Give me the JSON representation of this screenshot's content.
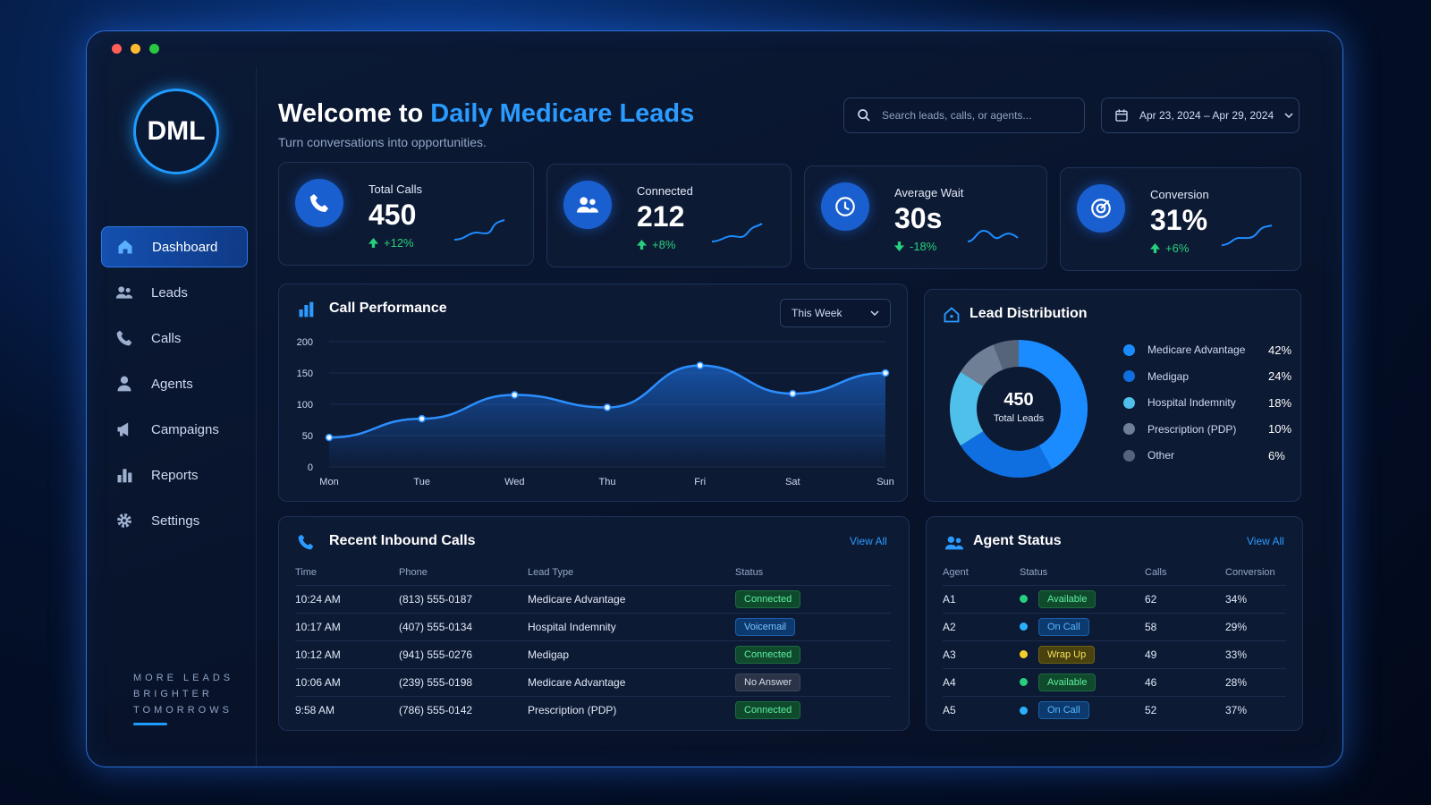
{
  "sidebar": {
    "logo": "DML",
    "items": [
      {
        "label": "Dashboard",
        "icon": "home-icon",
        "active": true
      },
      {
        "label": "Leads",
        "icon": "users-icon"
      },
      {
        "label": "Calls",
        "icon": "phone-icon"
      },
      {
        "label": "Agents",
        "icon": "user-icon"
      },
      {
        "label": "Campaigns",
        "icon": "megaphone-icon"
      },
      {
        "label": "Reports",
        "icon": "bar-chart-icon"
      },
      {
        "label": "Settings",
        "icon": "gear-icon"
      }
    ],
    "tagline": [
      "MORE LEADS",
      "BRIGHTER",
      "TOMORROWS"
    ]
  },
  "header": {
    "title_prefix": "Welcome to ",
    "title_accent": "Daily Medicare Leads",
    "subtitle": "Turn conversations into opportunities.",
    "search_placeholder": "Search leads, calls, or agents...",
    "date_range": "Apr 23, 2024 – Apr 29, 2024"
  },
  "kpis": [
    {
      "label": "Total Calls",
      "value": "450",
      "delta": "+12%",
      "direction": "up",
      "icon": "phone-icon"
    },
    {
      "label": "Connected",
      "value": "212",
      "delta": "+8%",
      "direction": "up",
      "icon": "users-icon"
    },
    {
      "label": "Average Wait",
      "value": "30s",
      "delta": "-18%",
      "direction": "down",
      "icon": "clock-icon"
    },
    {
      "label": "Conversion",
      "value": "31%",
      "delta": "+6%",
      "direction": "up",
      "icon": "target-icon"
    }
  ],
  "call_performance": {
    "title": "Call Performance",
    "range_select": "This Week"
  },
  "lead_distribution": {
    "title": "Lead Distribution",
    "center_value": "450",
    "center_label": "Total Leads"
  },
  "recent_calls": {
    "title": "Recent Inbound Calls",
    "view_all": "View All",
    "columns": [
      "Time",
      "Phone",
      "Lead Type",
      "Status"
    ],
    "rows": [
      {
        "time": "10:24 AM",
        "phone": "(813) 555-0187",
        "lead_type": "Medicare Advantage",
        "status": "Connected"
      },
      {
        "time": "10:17 AM",
        "phone": "(407) 555-0134",
        "lead_type": "Hospital Indemnity",
        "status": "Voicemail"
      },
      {
        "time": "10:12 AM",
        "phone": "(941) 555-0276",
        "lead_type": "Medigap",
        "status": "Connected"
      },
      {
        "time": "10:06 AM",
        "phone": "(239) 555-0198",
        "lead_type": "Medicare Advantage",
        "status": "No Answer"
      },
      {
        "time": "9:58 AM",
        "phone": "(786) 555-0142",
        "lead_type": "Prescription (PDP)",
        "status": "Connected"
      }
    ]
  },
  "agent_status": {
    "title": "Agent Status",
    "view_all": "View All",
    "columns": [
      "Agent",
      "Status",
      "Calls",
      "Conversion"
    ],
    "rows": [
      {
        "agent": "A1",
        "status": "Available",
        "calls": "62",
        "conversion": "34%"
      },
      {
        "agent": "A2",
        "status": "On Call",
        "calls": "58",
        "conversion": "29%"
      },
      {
        "agent": "A3",
        "status": "Wrap Up",
        "calls": "49",
        "conversion": "33%"
      },
      {
        "agent": "A4",
        "status": "Available",
        "calls": "46",
        "conversion": "28%"
      },
      {
        "agent": "A5",
        "status": "On Call",
        "calls": "52",
        "conversion": "37%"
      }
    ]
  },
  "colors": {
    "accent": "#2b9bff",
    "positive": "#26d07c",
    "background": "#08132a"
  },
  "chart_data": [
    {
      "type": "line",
      "title": "Call Performance",
      "categories": [
        "Mon",
        "Tue",
        "Wed",
        "Thu",
        "Fri",
        "Sat",
        "Sun"
      ],
      "values": [
        47,
        77,
        115,
        95,
        162,
        117,
        150
      ],
      "ylim": [
        0,
        200
      ],
      "yticks": [
        0,
        50,
        100,
        150,
        200
      ],
      "grid": true
    },
    {
      "type": "pie",
      "title": "Lead Distribution",
      "labels": [
        "Medicare Advantage",
        "Medigap",
        "Hospital Indemnity",
        "Prescription (PDP)",
        "Other"
      ],
      "values": [
        42,
        24,
        18,
        10,
        6
      ],
      "display": [
        "42%",
        "24%",
        "18%",
        "10%",
        "6%"
      ],
      "colors": [
        "#1a8cff",
        "#0f6fe0",
        "#4fc0ea",
        "#6f8096",
        "#56647a"
      ],
      "legend": "right"
    }
  ]
}
